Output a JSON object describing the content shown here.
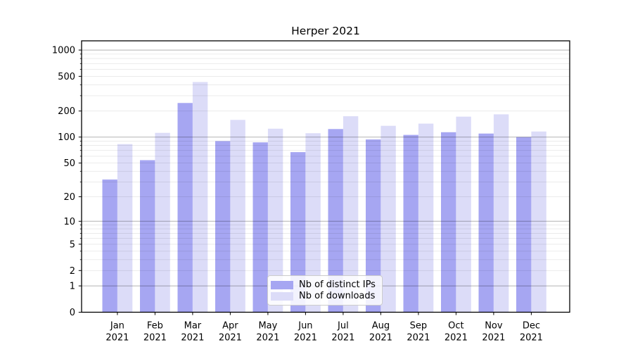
{
  "chart_data": {
    "type": "bar",
    "title": "Herper 2021",
    "categories": [
      "Jan 2021",
      "Feb 2021",
      "Mar 2021",
      "Apr 2021",
      "May 2021",
      "Jun 2021",
      "Jul 2021",
      "Aug 2021",
      "Sep 2021",
      "Oct 2021",
      "Nov 2021",
      "Dec 2021"
    ],
    "series": [
      {
        "name": "Nb of distinct IPs",
        "color": "#a6a6f2",
        "values": [
          32,
          54,
          247,
          90,
          87,
          67,
          124,
          94,
          106,
          114,
          110,
          100
        ]
      },
      {
        "name": "Nb of downloads",
        "color": "#dcdcf8",
        "values": [
          83,
          112,
          430,
          158,
          125,
          111,
          174,
          135,
          143,
          172,
          183,
          116
        ]
      }
    ],
    "xlabel": "",
    "ylabel": "",
    "y_scale": "log1p",
    "y_max": 1276,
    "y_ticks": [
      0,
      1,
      2,
      5,
      10,
      20,
      50,
      100,
      200,
      500,
      1000
    ],
    "y_minor_ticks": [
      3,
      4,
      6,
      7,
      8,
      9,
      30,
      40,
      60,
      70,
      80,
      90,
      300,
      400,
      600,
      700,
      800,
      900
    ],
    "grid_major_values": [
      1,
      10,
      100,
      1000
    ],
    "grid": "on",
    "legend_position": "lower center"
  },
  "colors": {
    "background": "#ffffff",
    "axis": "#000000",
    "text": "#000000",
    "grid_minor": "rgba(0,0,0,0.09)",
    "grid_major": "rgba(0,0,0,0.30)",
    "legend_border": "#cccccc"
  }
}
